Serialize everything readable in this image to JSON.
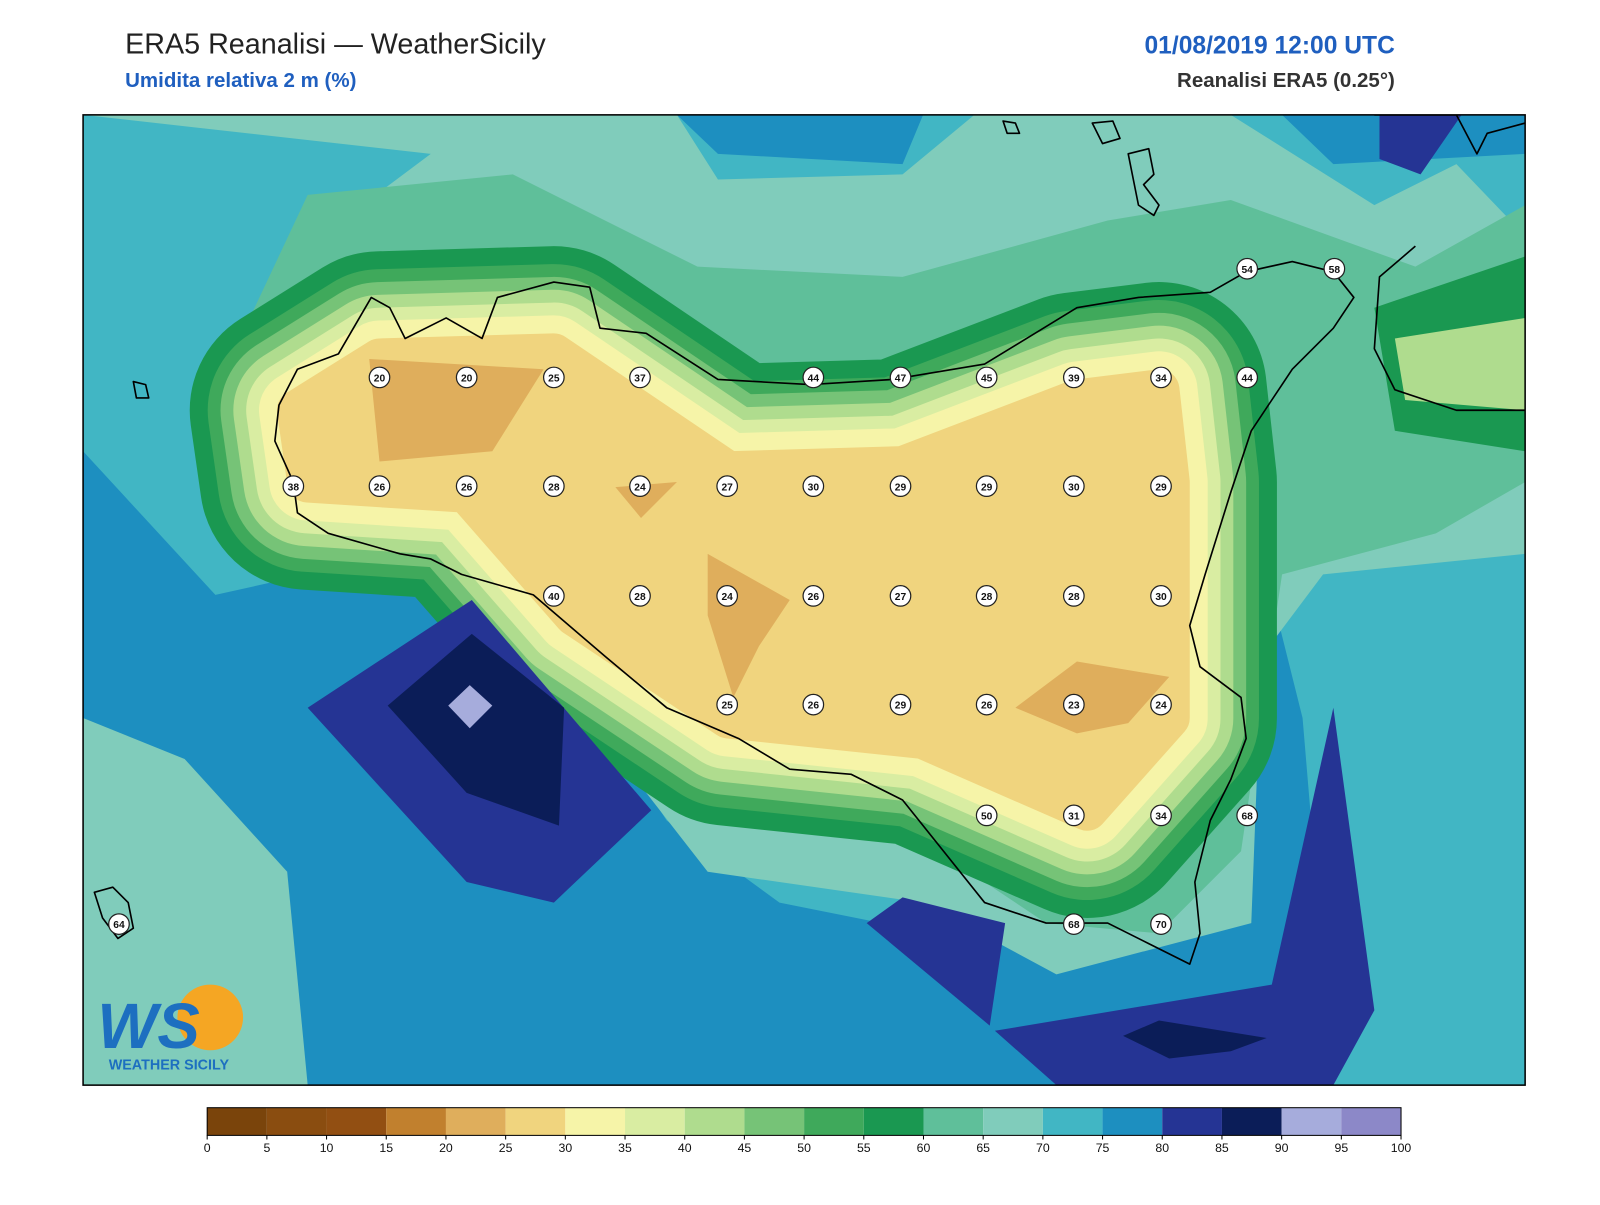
{
  "header": {
    "title": "ERA5 Reanalisi — WeatherSicily",
    "subtitle": "Umidita relativa 2 m (%)",
    "datetime": "01/08/2019 12:00 UTC",
    "source": "Reanalisi ERA5 (0.25°)"
  },
  "stations": [
    20,
    20,
    25,
    37,
    44,
    47,
    45,
    39,
    34,
    44,
    54,
    58,
    38,
    26,
    26,
    28,
    24,
    27,
    30,
    29,
    29,
    30,
    29,
    40,
    28,
    24,
    26,
    27,
    28,
    28,
    30,
    25,
    26,
    29,
    26,
    23,
    24,
    50,
    31,
    34,
    68,
    64,
    68,
    70
  ],
  "colorbar": {
    "ticks": [
      0,
      5,
      10,
      15,
      20,
      25,
      30,
      35,
      40,
      45,
      50,
      55,
      60,
      65,
      70,
      75,
      80,
      85,
      90,
      95,
      100
    ],
    "colors": [
      "#7a440b",
      "#8a4d10",
      "#924f12",
      "#c1802e",
      "#dfae5c",
      "#f0d47e",
      "#f6f4a8",
      "#d9eda2",
      "#afdc8e",
      "#76c377",
      "#3fa95b",
      "#1a9851",
      "#5fbf9a",
      "#80ccbb",
      "#41b6c4",
      "#1d8fc0",
      "#253494",
      "#0b1d58",
      "#a6acdc",
      "#8c88c8"
    ]
  },
  "logo": {
    "mark": "WS",
    "name": "WEATHER SICILY"
  }
}
